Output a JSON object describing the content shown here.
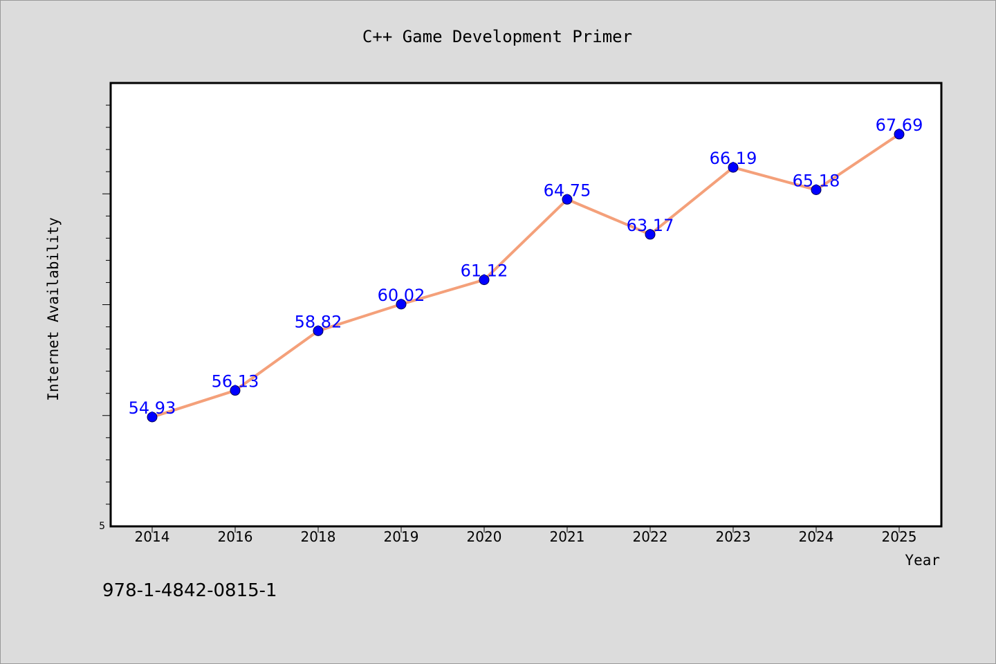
{
  "chart_data": {
    "type": "line",
    "title": "C++ Game Development Primer",
    "xlabel": "Year",
    "ylabel": "Internet Availability",
    "categories": [
      "2014",
      "2016",
      "2018",
      "2019",
      "2020",
      "2021",
      "2022",
      "2023",
      "2024",
      "2025"
    ],
    "series": [
      {
        "values": [
          54.93,
          56.13,
          58.82,
          60.02,
          61.12,
          64.75,
          63.17,
          66.19,
          65.18,
          67.69
        ]
      }
    ],
    "data_labels": [
      "54.93",
      "56.13",
      "58.82",
      "60.02",
      "61.12",
      "64.75",
      "63.17",
      "66.19",
      "65.18",
      "67.69"
    ],
    "ylim": [
      50,
      70
    ],
    "y_tick_labels": [
      "5"
    ],
    "grid": false,
    "legend": "none",
    "colors": {
      "line": "#f4a07a",
      "marker": "#0000ff",
      "data_label": "#0000ff",
      "plot_background": "#ffffff",
      "page_background": "#dcdcdc"
    }
  },
  "footer": {
    "isbn": "978-1-4842-0815-1"
  }
}
